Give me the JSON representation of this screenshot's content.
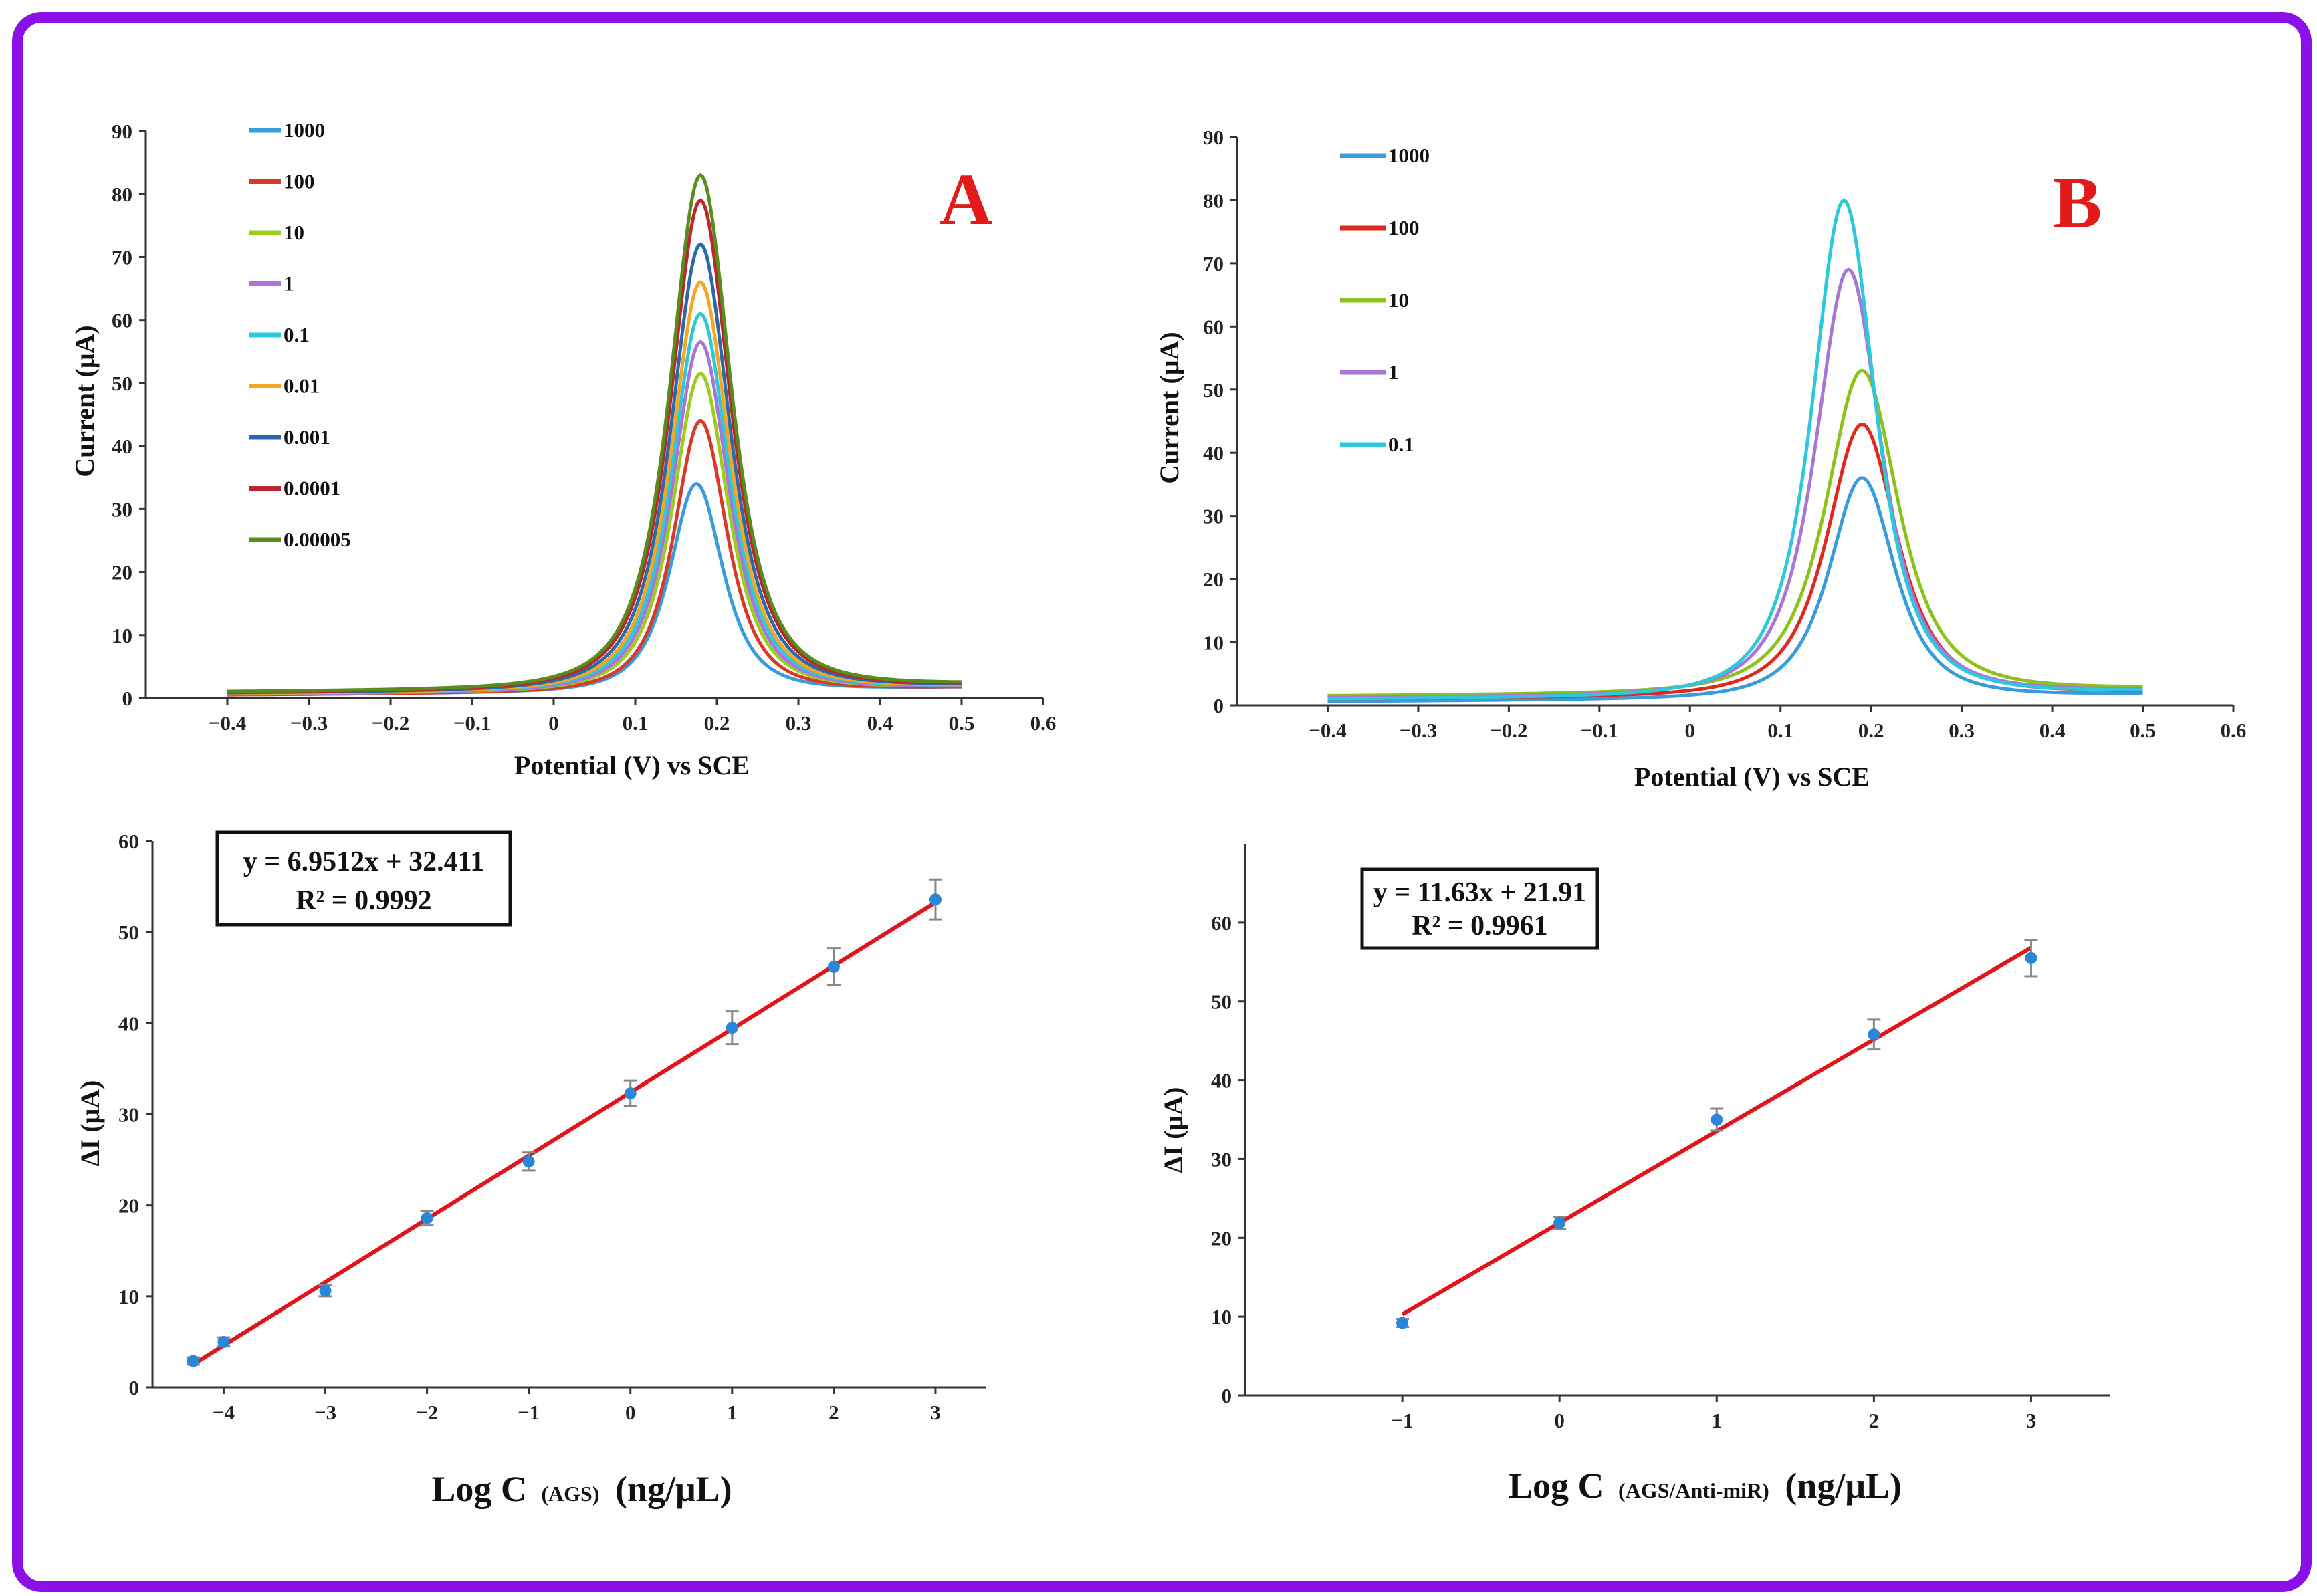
{
  "chart_data": [
    {
      "type": "line",
      "panel": "A",
      "panel_label": "A",
      "xlabel": "Potential (V) vs SCE",
      "ylabel": "Current (μA)",
      "xlim": [
        -0.5,
        0.6
      ],
      "ylim": [
        0,
        90
      ],
      "xticks": [
        "−0.4",
        "−0.3",
        "−0.2",
        "−0.1",
        "0",
        "0.1",
        "0.2",
        "0.3",
        "0.4",
        "0.5",
        "0.6"
      ],
      "xtick_values": [
        -0.4,
        -0.3,
        -0.2,
        -0.1,
        0,
        0.1,
        0.2,
        0.3,
        0.4,
        0.5,
        0.6
      ],
      "yticks": [
        "0",
        "10",
        "20",
        "30",
        "40",
        "50",
        "60",
        "70",
        "80",
        "90"
      ],
      "ytick_values": [
        0,
        10,
        20,
        30,
        40,
        50,
        60,
        70,
        80,
        90
      ],
      "legend_position": "top-left",
      "series": [
        {
          "name": "1000",
          "color": "#3a9bdc",
          "peak": 33.5,
          "center": 0.175,
          "width": 0.052,
          "baseline": 0.5
        },
        {
          "name": "100",
          "color": "#d83a2a",
          "peak": 43.5,
          "center": 0.18,
          "width": 0.052,
          "baseline": 0.5
        },
        {
          "name": "10",
          "color": "#9ccc1c",
          "peak": 51,
          "center": 0.18,
          "width": 0.054,
          "baseline": 0.6
        },
        {
          "name": "1",
          "color": "#a776d6",
          "peak": 56,
          "center": 0.18,
          "width": 0.055,
          "baseline": 0.6
        },
        {
          "name": "0.1",
          "color": "#2cc8dc",
          "peak": 60.5,
          "center": 0.18,
          "width": 0.056,
          "baseline": 0.7
        },
        {
          "name": "0.01",
          "color": "#f5a623",
          "peak": 65.5,
          "center": 0.18,
          "width": 0.057,
          "baseline": 0.7
        },
        {
          "name": "0.001",
          "color": "#2a6aa8",
          "peak": 71.5,
          "center": 0.18,
          "width": 0.058,
          "baseline": 0.8
        },
        {
          "name": "0.0001",
          "color": "#b8282c",
          "peak": 78.5,
          "center": 0.18,
          "width": 0.059,
          "baseline": 0.9
        },
        {
          "name": "0.00005",
          "color": "#5a8c1c",
          "peak": 82.5,
          "center": 0.18,
          "width": 0.06,
          "baseline": 1.0
        }
      ]
    },
    {
      "type": "line",
      "panel": "B",
      "panel_label": "B",
      "xlabel": "Potential (V) vs SCE",
      "ylabel": "Current (μA)",
      "xlim": [
        -0.5,
        0.6
      ],
      "ylim": [
        0,
        90
      ],
      "xticks": [
        "−0.4",
        "−0.3",
        "−0.2",
        "−0.1",
        "0",
        "0.1",
        "0.2",
        "0.3",
        "0.4",
        "0.5",
        "0.6"
      ],
      "xtick_values": [
        -0.4,
        -0.3,
        -0.2,
        -0.1,
        0,
        0.1,
        0.2,
        0.3,
        0.4,
        0.5,
        0.6
      ],
      "yticks": [
        "0",
        "10",
        "20",
        "30",
        "40",
        "50",
        "60",
        "70",
        "80",
        "90"
      ],
      "ytick_values": [
        0,
        10,
        20,
        30,
        40,
        50,
        60,
        70,
        80,
        90
      ],
      "legend_position": "top-left",
      "series": [
        {
          "name": "1000",
          "color": "#3a9bdc",
          "peak": 35.5,
          "center": 0.19,
          "width": 0.058,
          "baseline": 0.6
        },
        {
          "name": "100",
          "color": "#e0281e",
          "peak": 44,
          "center": 0.19,
          "width": 0.062,
          "baseline": 1.0
        },
        {
          "name": "10",
          "color": "#8cc21c",
          "peak": 52.5,
          "center": 0.19,
          "width": 0.064,
          "baseline": 1.5
        },
        {
          "name": "1",
          "color": "#a776d6",
          "peak": 68.5,
          "center": 0.175,
          "width": 0.058,
          "baseline": 1.2
        },
        {
          "name": "0.1",
          "color": "#2cc8dc",
          "peak": 79.5,
          "center": 0.17,
          "width": 0.056,
          "baseline": 1.0
        }
      ]
    },
    {
      "type": "scatter",
      "panel": "A-calibration",
      "xlabel_main": "Log C",
      "xlabel_sub": "(AGS)",
      "xlabel_unit": "(ng/μL)",
      "ylabel": "ΔI (μA)",
      "xlim": [
        -4.7,
        3.5
      ],
      "ylim": [
        0,
        60
      ],
      "xticks": [
        "−4",
        "−3",
        "−2",
        "−1",
        "0",
        "1",
        "2",
        "3"
      ],
      "xtick_values": [
        -4,
        -3,
        -2,
        -1,
        0,
        1,
        2,
        3
      ],
      "yticks": [
        "0",
        "10",
        "20",
        "30",
        "40",
        "50",
        "60"
      ],
      "ytick_values": [
        0,
        10,
        20,
        30,
        40,
        50,
        60
      ],
      "equation": "y = 6.9512x + 32.411",
      "r_squared": "R² = 0.9992",
      "fit": {
        "slope": 6.9512,
        "intercept": 32.411,
        "x_range": [
          -4.3,
          3
        ]
      },
      "points": [
        {
          "x": -4.3,
          "y": 2.9,
          "err": 0.4
        },
        {
          "x": -4.0,
          "y": 5.0,
          "err": 0.5
        },
        {
          "x": -3.0,
          "y": 10.6,
          "err": 0.6
        },
        {
          "x": -2.0,
          "y": 18.6,
          "err": 0.8
        },
        {
          "x": -1.0,
          "y": 24.8,
          "err": 1.0
        },
        {
          "x": 0.0,
          "y": 32.3,
          "err": 1.4
        },
        {
          "x": 1.0,
          "y": 39.5,
          "err": 1.8
        },
        {
          "x": 2.0,
          "y": 46.2,
          "err": 2.0
        },
        {
          "x": 3.0,
          "y": 53.6,
          "err": 2.2
        }
      ],
      "point_color": "#2a86d8",
      "line_color": "#e0141a"
    },
    {
      "type": "scatter",
      "panel": "B-calibration",
      "xlabel_main": "Log C",
      "xlabel_sub": "(AGS/Anti-miR)",
      "xlabel_unit": "(ng/μL)",
      "ylabel": "ΔI (μA)",
      "xlim": [
        -2,
        3.5
      ],
      "ylim": [
        0,
        70
      ],
      "xticks": [
        "−1",
        "0",
        "1",
        "2",
        "3"
      ],
      "xtick_values": [
        -1,
        0,
        1,
        2,
        3
      ],
      "yticks": [
        "0",
        "10",
        "20",
        "30",
        "40",
        "50",
        "60"
      ],
      "ytick_values": [
        0,
        10,
        20,
        30,
        40,
        50,
        60
      ],
      "equation": "y = 11.63x + 21.91",
      "r_squared": "R² = 0.9961",
      "fit": {
        "slope": 11.63,
        "intercept": 21.91,
        "x_range": [
          -1,
          3
        ]
      },
      "points": [
        {
          "x": -1.0,
          "y": 9.2,
          "err": 0.5
        },
        {
          "x": 0.0,
          "y": 21.9,
          "err": 0.8
        },
        {
          "x": 1.0,
          "y": 35.0,
          "err": 1.4
        },
        {
          "x": 2.0,
          "y": 45.8,
          "err": 1.9
        },
        {
          "x": 3.0,
          "y": 55.5,
          "err": 2.3
        }
      ],
      "point_color": "#2a86d8",
      "line_color": "#e0141a"
    }
  ]
}
